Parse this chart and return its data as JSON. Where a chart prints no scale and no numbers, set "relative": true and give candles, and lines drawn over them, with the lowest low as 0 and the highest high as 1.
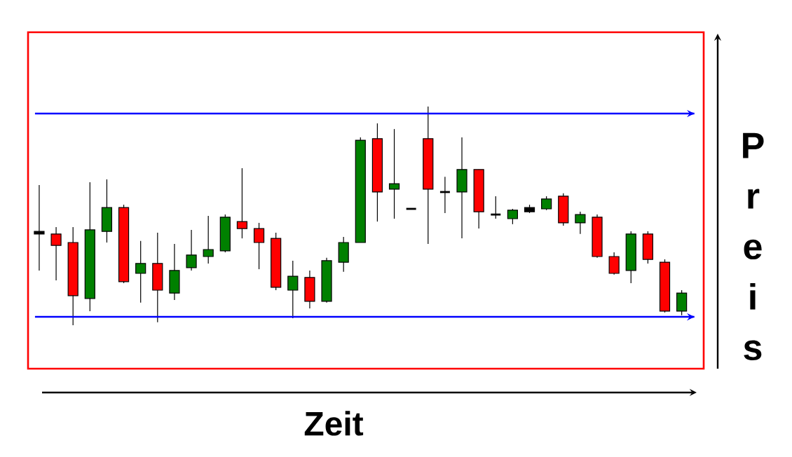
{
  "chart_data": {
    "type": "candlestick",
    "xlabel": "Zeit",
    "ylabel": "Preis",
    "relative": true,
    "categories": [
      null,
      null,
      null,
      null,
      null,
      null,
      null,
      null,
      null,
      null,
      null,
      null,
      null,
      null,
      null,
      null,
      null,
      null,
      null,
      null,
      null,
      null,
      null,
      null,
      null,
      null,
      null,
      null,
      null,
      null,
      null,
      null,
      null,
      null,
      null,
      null,
      null,
      null,
      null
    ],
    "ohlc": [
      [
        0.417,
        0.641,
        0.25,
        0.429
      ],
      [
        0.417,
        0.449,
        0.205,
        0.365
      ],
      [
        0.378,
        0.449,
        0,
        0.135
      ],
      [
        0.122,
        0.654,
        0.064,
        0.436
      ],
      [
        0.429,
        0.667,
        0.378,
        0.538
      ],
      [
        0.538,
        0.551,
        0.192,
        0.199
      ],
      [
        0.237,
        0.385,
        0.103,
        0.282
      ],
      [
        0.282,
        0.423,
        0.013,
        0.16
      ],
      [
        0.147,
        0.372,
        0.115,
        0.25
      ],
      [
        0.263,
        0.436,
        0.25,
        0.321
      ],
      [
        0.314,
        0.5,
        0.282,
        0.346
      ],
      [
        0.34,
        0.506,
        0.333,
        0.494
      ],
      [
        0.474,
        0.718,
        0.397,
        0.442
      ],
      [
        0.442,
        0.468,
        0.256,
        0.378
      ],
      [
        0.397,
        0.423,
        0.16,
        0.173
      ],
      [
        0.16,
        0.295,
        0.032,
        0.224
      ],
      [
        0.218,
        0.25,
        0.077,
        0.109
      ],
      [
        0.109,
        0.308,
        0.103,
        0.295
      ],
      [
        0.288,
        0.404,
        0.244,
        0.378
      ],
      [
        0.378,
        0.859,
        0.378,
        0.846
      ],
      [
        0.853,
        0.923,
        0.474,
        0.609
      ],
      [
        0.622,
        0.897,
        0.487,
        0.647
      ],
      [
        0.532,
        0.532,
        0.532,
        0.532
      ],
      [
        0.853,
        1,
        0.372,
        0.622
      ],
      [
        0.609,
        0.679,
        0.513,
        0.609
      ],
      [
        0.609,
        0.859,
        0.397,
        0.712
      ],
      [
        0.712,
        0.712,
        0.442,
        0.519
      ],
      [
        0.506,
        0.59,
        0.487,
        0.506
      ],
      [
        0.487,
        0.532,
        0.462,
        0.526
      ],
      [
        0.519,
        0.551,
        0.513,
        0.538
      ],
      [
        0.532,
        0.59,
        0.526,
        0.577
      ],
      [
        0.59,
        0.603,
        0.455,
        0.468
      ],
      [
        0.468,
        0.519,
        0.417,
        0.506
      ],
      [
        0.494,
        0.506,
        0.308,
        0.314
      ],
      [
        0.314,
        0.333,
        0.231,
        0.237
      ],
      [
        0.25,
        0.429,
        0.192,
        0.417
      ],
      [
        0.417,
        0.429,
        0.282,
        0.301
      ],
      [
        0.288,
        0.301,
        0.058,
        0.064
      ],
      [
        0.064,
        0.16,
        0.045,
        0.147
      ]
    ],
    "colors": [
      "#000000",
      "#ff0000",
      "#ff0000",
      "#008000",
      "#008000",
      "#ff0000",
      "#008000",
      "#ff0000",
      "#008000",
      "#008000",
      "#008000",
      "#008000",
      "#ff0000",
      "#ff0000",
      "#ff0000",
      "#008000",
      "#ff0000",
      "#008000",
      "#008000",
      "#008000",
      "#ff0000",
      "#008000",
      "#000000",
      "#ff0000",
      "#000000",
      "#008000",
      "#ff0000",
      "#000000",
      "#008000",
      "#000000",
      "#008000",
      "#ff0000",
      "#008000",
      "#ff0000",
      "#ff0000",
      "#008000",
      "#ff0000",
      "#ff0000",
      "#008000"
    ],
    "ref_lines": [
      {
        "axis": "y",
        "value": 0.968,
        "color": "#0000ff"
      },
      {
        "axis": "y",
        "value": 0.038,
        "color": "#0000ff"
      }
    ]
  }
}
